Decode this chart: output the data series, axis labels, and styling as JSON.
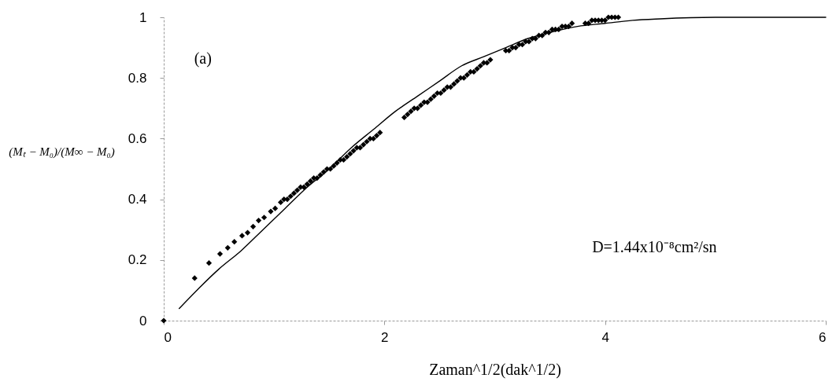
{
  "chart_data": {
    "type": "scatter",
    "xlabel": "Zaman^1/2(dak^1/2)",
    "ylabel": "(Mₜ − M₀)/(M∞ − M₀)",
    "annotations": [
      "(a)",
      "D=1.44x10⁻⁸cm²/sn"
    ],
    "xlim": [
      0,
      6
    ],
    "ylim": [
      0,
      1
    ],
    "xticks": [
      0,
      2,
      4,
      6
    ],
    "yticks": [
      0,
      0.2,
      0.4,
      0.6,
      0.8,
      1
    ],
    "series": [
      {
        "type": "line",
        "color": "#000000",
        "line_style": "solid",
        "x": [
          0.14,
          0.3,
          0.5,
          0.7,
          0.9,
          1.1,
          1.3,
          1.5,
          1.7,
          1.9,
          2.1,
          2.3,
          2.5,
          2.7,
          2.9,
          3.1,
          3.3,
          3.5,
          3.75,
          4.0,
          4.25,
          4.5,
          5.0,
          5.5,
          6.0
        ],
        "values": [
          0.04,
          0.1,
          0.17,
          0.23,
          0.3,
          0.37,
          0.44,
          0.5,
          0.57,
          0.63,
          0.69,
          0.74,
          0.79,
          0.84,
          0.87,
          0.9,
          0.93,
          0.95,
          0.97,
          0.98,
          0.99,
          0.995,
          1.0,
          1.0,
          1.0
        ]
      },
      {
        "color": "#000000",
        "marker": "diamond",
        "x": [
          0,
          0.28,
          0.41,
          0.51,
          0.58,
          0.64,
          0.71,
          0.76,
          0.81,
          0.86,
          0.91,
          0.97,
          1.01,
          1.06,
          1.09,
          1.12,
          1.15,
          1.18,
          1.21,
          1.24,
          1.27,
          1.3,
          1.33,
          1.36,
          1.39,
          1.42,
          1.45,
          1.48,
          1.51,
          1.54,
          1.57,
          1.6,
          1.63,
          1.66,
          1.69,
          1.72,
          1.75,
          1.78,
          1.81,
          1.84,
          1.87,
          1.9,
          1.93,
          1.96,
          2.18,
          2.21,
          2.24,
          2.27,
          2.3,
          2.33,
          2.36,
          2.39,
          2.42,
          2.45,
          2.48,
          2.51,
          2.54,
          2.57,
          2.6,
          2.63,
          2.66,
          2.69,
          2.72,
          2.75,
          2.78,
          2.81,
          2.84,
          2.87,
          2.9,
          2.93,
          2.96,
          3.1,
          3.13,
          3.16,
          3.19,
          3.22,
          3.25,
          3.28,
          3.31,
          3.34,
          3.37,
          3.4,
          3.43,
          3.46,
          3.49,
          3.52,
          3.55,
          3.58,
          3.61,
          3.64,
          3.67,
          3.7,
          3.82,
          3.85,
          3.88,
          3.91,
          3.94,
          3.97,
          4.0,
          4.03,
          4.06,
          4.09,
          4.12
        ],
        "values": [
          0,
          0.14,
          0.19,
          0.22,
          0.24,
          0.26,
          0.28,
          0.29,
          0.31,
          0.33,
          0.34,
          0.36,
          0.37,
          0.39,
          0.4,
          0.4,
          0.41,
          0.42,
          0.43,
          0.44,
          0.44,
          0.45,
          0.46,
          0.47,
          0.47,
          0.48,
          0.49,
          0.5,
          0.5,
          0.51,
          0.52,
          0.53,
          0.53,
          0.54,
          0.55,
          0.56,
          0.57,
          0.57,
          0.58,
          0.59,
          0.6,
          0.6,
          0.61,
          0.62,
          0.67,
          0.68,
          0.69,
          0.7,
          0.7,
          0.71,
          0.72,
          0.72,
          0.73,
          0.74,
          0.75,
          0.75,
          0.76,
          0.77,
          0.77,
          0.78,
          0.79,
          0.8,
          0.8,
          0.81,
          0.82,
          0.82,
          0.83,
          0.84,
          0.85,
          0.85,
          0.86,
          0.89,
          0.89,
          0.9,
          0.9,
          0.91,
          0.91,
          0.92,
          0.92,
          0.93,
          0.93,
          0.94,
          0.94,
          0.95,
          0.95,
          0.96,
          0.96,
          0.96,
          0.97,
          0.97,
          0.97,
          0.98,
          0.98,
          0.98,
          0.99,
          0.99,
          0.99,
          0.99,
          0.99,
          1.0,
          1.0,
          1.0,
          1.0
        ]
      }
    ]
  }
}
